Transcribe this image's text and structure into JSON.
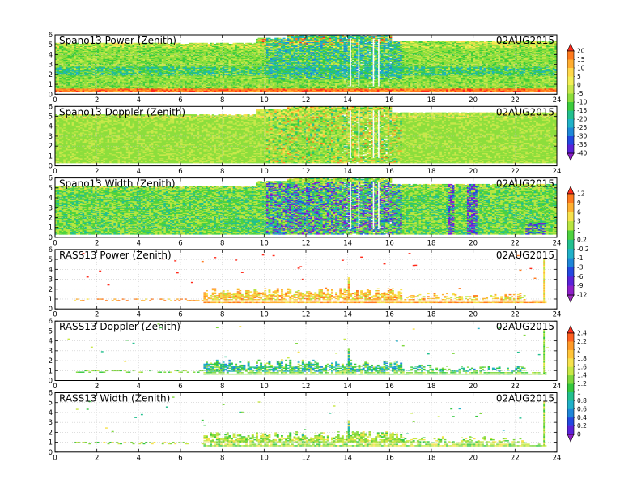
{
  "figure": {
    "date": "02AUG2015"
  },
  "chart_data": {
    "type": "heatmap",
    "x_ticks": [
      0,
      2,
      4,
      6,
      8,
      10,
      12,
      14,
      16,
      18,
      20,
      22,
      24
    ],
    "y_ticks": [
      0,
      1,
      2,
      3,
      4,
      5,
      6
    ],
    "xlim": [
      0,
      24
    ],
    "ylim": [
      0,
      6
    ],
    "grid": true,
    "panels": [
      {
        "id": "sp-power",
        "title": "Spano13 Power (Zenith)",
        "date": "02AUG2015",
        "kind": "spano-power",
        "colorbar": 0
      },
      {
        "id": "sp-doppler",
        "title": "Spano13 Doppler (Zenith)",
        "date": "02AUG2015",
        "kind": "spano-doppler",
        "colorbar": 0
      },
      {
        "id": "sp-width",
        "title": "Spano13 Width (Zenith)",
        "date": "02AUG2015",
        "kind": "spano-width",
        "colorbar": 1
      },
      {
        "id": "rass-power",
        "title": "RASS13 Power (Zenith)",
        "date": "02AUG2015",
        "kind": "rass-power",
        "colorbar": 1
      },
      {
        "id": "rass-doppler",
        "title": "RASS13 Doppler (Zenith)",
        "date": "02AUG2015",
        "kind": "rass-doppler",
        "colorbar": 2
      },
      {
        "id": "rass-width",
        "title": "RASS13 Width (Zenith)",
        "date": "02AUG2015",
        "kind": "rass-width",
        "colorbar": 2
      }
    ],
    "colorbars": [
      {
        "labels": [
          "20",
          "15",
          "10",
          "5",
          "0",
          "-5",
          "-10",
          "-15",
          "-20",
          "-25",
          "-30",
          "-35",
          "-40"
        ],
        "colors": [
          "#ff2a1a",
          "#ff7a1e",
          "#ffad30",
          "#ffd84a",
          "#f2ee55",
          "#c8e84a",
          "#8cde3c",
          "#3ccc3c",
          "#22c08e",
          "#20b2c8",
          "#1e88d8",
          "#2248e0",
          "#5a22d8",
          "#8e1ec8"
        ]
      },
      {
        "labels": [
          "12",
          "9",
          "6",
          "3",
          "1",
          "0.2",
          "-0.2",
          "-1",
          "-3",
          "-6",
          "-9",
          "-12"
        ],
        "colors": [
          "#ff2a1a",
          "#ff7a1e",
          "#ffb030",
          "#f6e24c",
          "#b8e640",
          "#4ed23e",
          "#22c08e",
          "#20b0c8",
          "#1e86d8",
          "#2448e0",
          "#5a22d8",
          "#8e1ec8",
          "#9e2cc0"
        ]
      },
      {
        "labels": [
          "2.4",
          "2.2",
          "2",
          "1.8",
          "1.6",
          "1.4",
          "1.2",
          "1",
          "0.8",
          "0.6",
          "0.4",
          "0.2",
          "0"
        ],
        "colors": [
          "#ff2a1a",
          "#ff6020",
          "#ff9a28",
          "#ffc438",
          "#f6e24c",
          "#c8e844",
          "#7ed83c",
          "#34c83e",
          "#22c08e",
          "#20b0c8",
          "#1e86d8",
          "#2448e0",
          "#5a22d8",
          "#8e1ec8"
        ]
      }
    ]
  }
}
